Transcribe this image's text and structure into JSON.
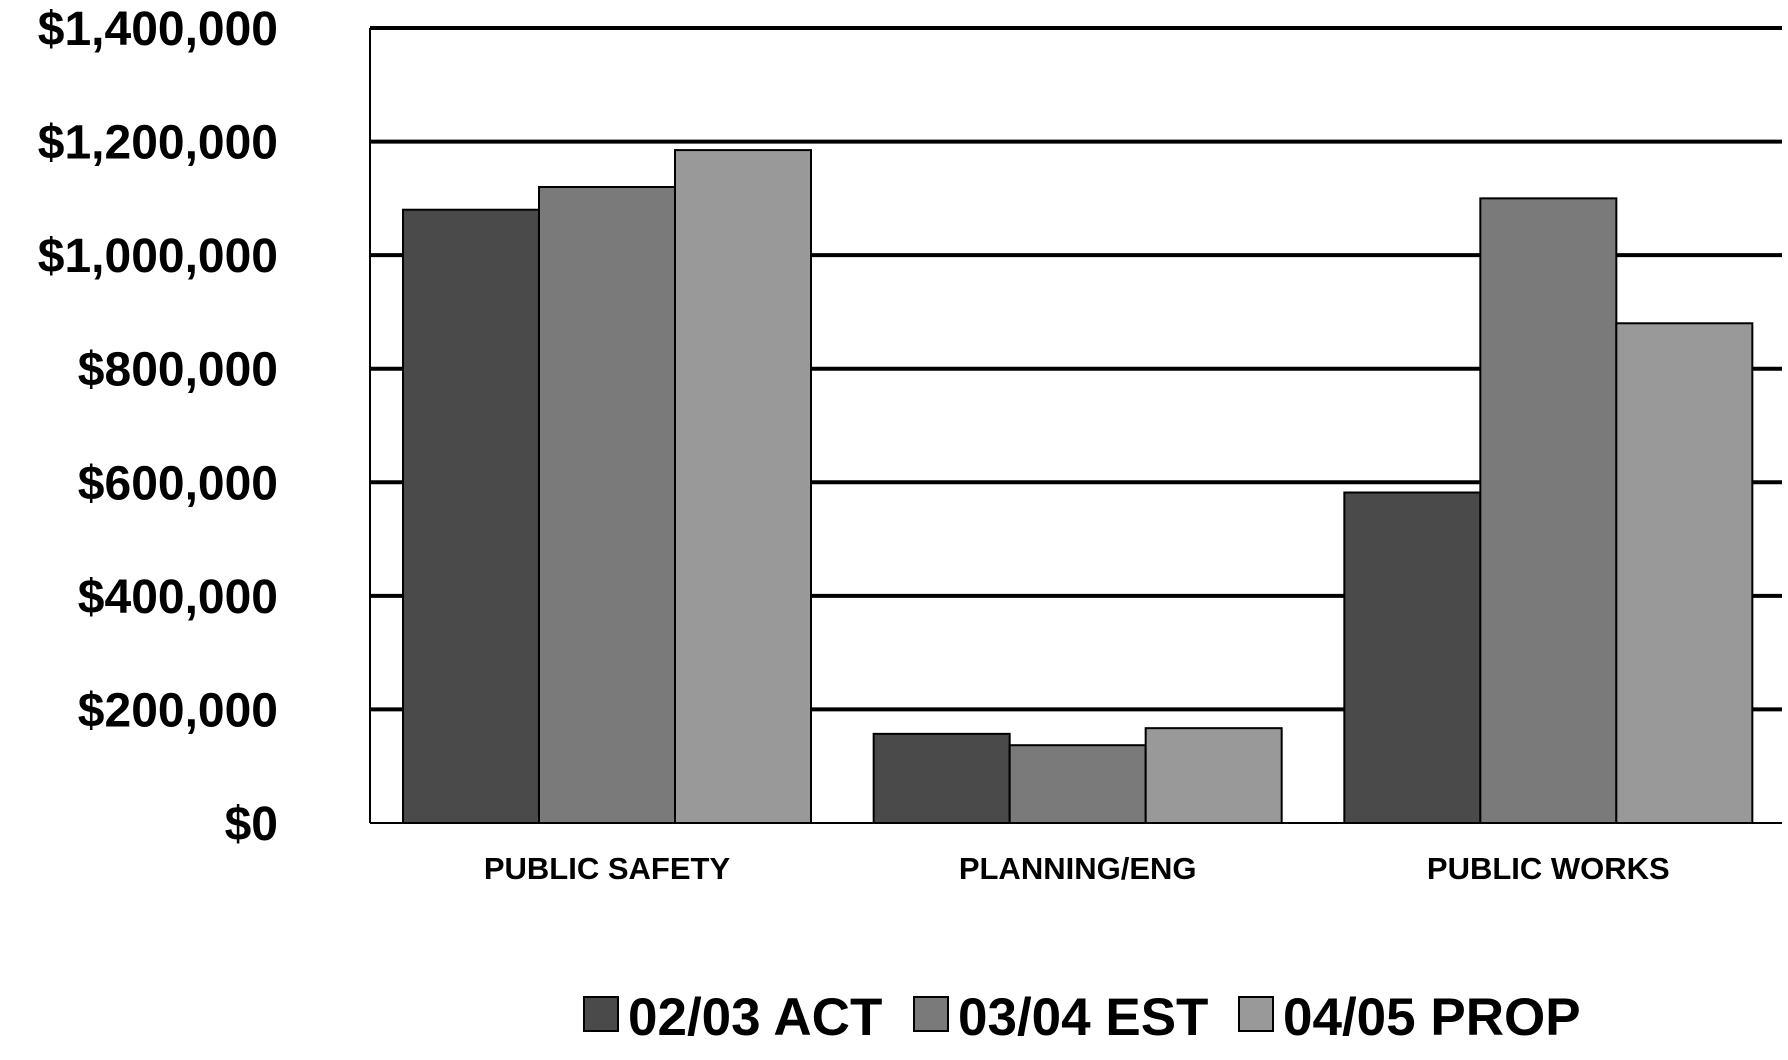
{
  "chart_data": {
    "type": "bar",
    "categories": [
      "PUBLIC SAFETY",
      "PLANNING/ENG",
      "PUBLIC WORKS"
    ],
    "series": [
      {
        "name": "02/03 ACT",
        "values": [
          1080000,
          157000,
          582000
        ],
        "color": "#4a4a4a"
      },
      {
        "name": "03/04 EST",
        "values": [
          1120000,
          137000,
          1100000
        ],
        "color": "#7a7a7a"
      },
      {
        "name": "04/05 PROP",
        "values": [
          1185000,
          167000,
          880000
        ],
        "color": "#999999"
      }
    ],
    "title": "",
    "xlabel": "",
    "ylabel": "",
    "ylim": [
      0,
      1400000
    ],
    "y_ticks": [
      0,
      200000,
      400000,
      600000,
      800000,
      1000000,
      1200000,
      1400000
    ],
    "y_tick_labels": [
      "$0",
      "$200,000",
      "$400,000",
      "$600,000",
      "$800,000",
      "$1,000,000",
      "$1,200,000",
      "$1,400,000"
    ],
    "grid": true,
    "legend_position": "bottom"
  }
}
